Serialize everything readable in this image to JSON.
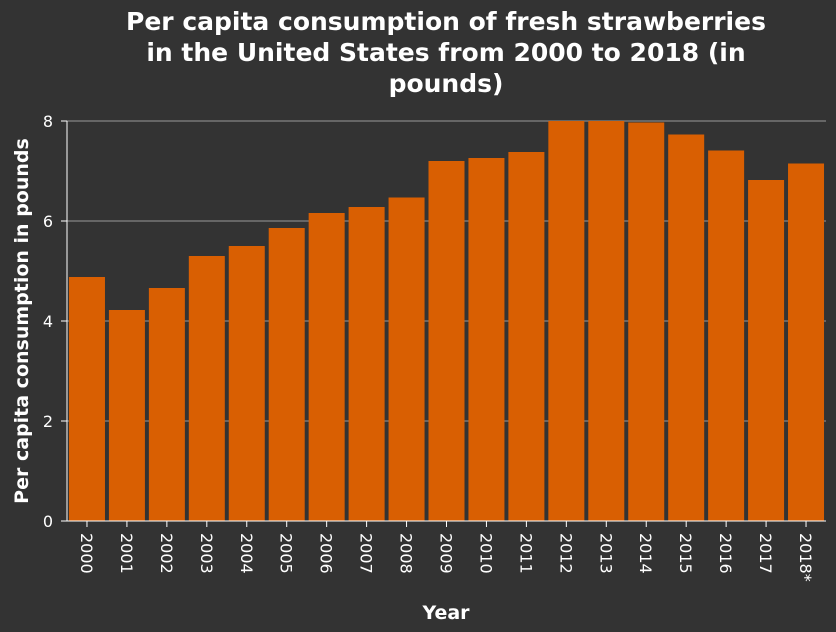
{
  "chart_data": {
    "type": "bar",
    "title_lines": [
      "Per capita consumption of fresh strawberries",
      "in the United States from 2000 to 2018 (in",
      "pounds)"
    ],
    "xlabel": "Year",
    "ylabel": "Per capita consumption in pounds",
    "categories": [
      "2000",
      "2001",
      "2002",
      "2003",
      "2004",
      "2005",
      "2006",
      "2007",
      "2008",
      "2009",
      "2010",
      "2011",
      "2012",
      "2013",
      "2014",
      "2015",
      "2016",
      "2017",
      "2018*"
    ],
    "values": [
      4.88,
      4.22,
      4.66,
      5.3,
      5.5,
      5.86,
      6.16,
      6.28,
      6.47,
      7.2,
      7.26,
      7.38,
      8.0,
      8.0,
      7.97,
      7.73,
      7.41,
      6.82,
      7.15
    ],
    "ylim": [
      0,
      8
    ],
    "yticks": [
      0,
      2,
      4,
      6,
      8
    ],
    "grid": true,
    "colors": {
      "bar": "#d95f02",
      "background": "#333333",
      "text": "#ffffff",
      "grid": "#9a9a9a"
    }
  }
}
